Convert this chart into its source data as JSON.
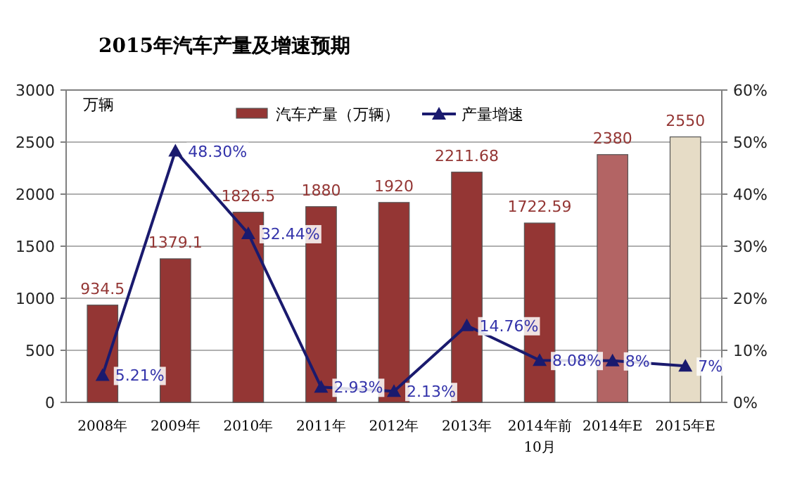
{
  "chart_data": {
    "type": "bar",
    "title": "2015年汽车产量及增速预期",
    "ylabel": "万辆",
    "categories": [
      "2008年",
      "2009年",
      "2010年",
      "2011年",
      "2012年",
      "2013年",
      "2014年前10月",
      "2014年E",
      "2015年E"
    ],
    "series": [
      {
        "name": "汽车产量（万辆）",
        "color": "#943634",
        "colors": [
          "#943634",
          "#943634",
          "#943634",
          "#943634",
          "#943634",
          "#943634",
          "#943634",
          "#b36464",
          "#e6dcc6"
        ],
        "values": [
          934.5,
          1379.1,
          1826.5,
          1880,
          1920,
          2211.68,
          1722.59,
          2380,
          2550
        ]
      },
      {
        "name": "产量增速",
        "type": "line",
        "axis": "y2",
        "color": "#1a1a6e",
        "marker": "triangle",
        "values": [
          5.21,
          48.3,
          32.44,
          2.93,
          2.13,
          14.76,
          8.08,
          8,
          7
        ],
        "value_labels": [
          "5.21%",
          "48.30%",
          "32.44%",
          "2.93%",
          "2.13%",
          "14.76%",
          "8.08%",
          "8%",
          "7%"
        ]
      }
    ],
    "data_labels": true,
    "ylim": [
      0,
      3000
    ],
    "yticks": [
      0,
      500,
      1000,
      1500,
      2000,
      2500,
      3000
    ],
    "y2lim": [
      0,
      60
    ],
    "y2ticks": [
      {
        "value": 0,
        "label": "0%"
      },
      {
        "value": 10,
        "label": "10%"
      },
      {
        "value": 20,
        "label": "20%"
      },
      {
        "value": 30,
        "label": "30%"
      },
      {
        "value": 40,
        "label": "40%"
      },
      {
        "value": 50,
        "label": "50%"
      },
      {
        "value": 60,
        "label": "60%"
      }
    ],
    "grid": "y",
    "legend": "top"
  }
}
